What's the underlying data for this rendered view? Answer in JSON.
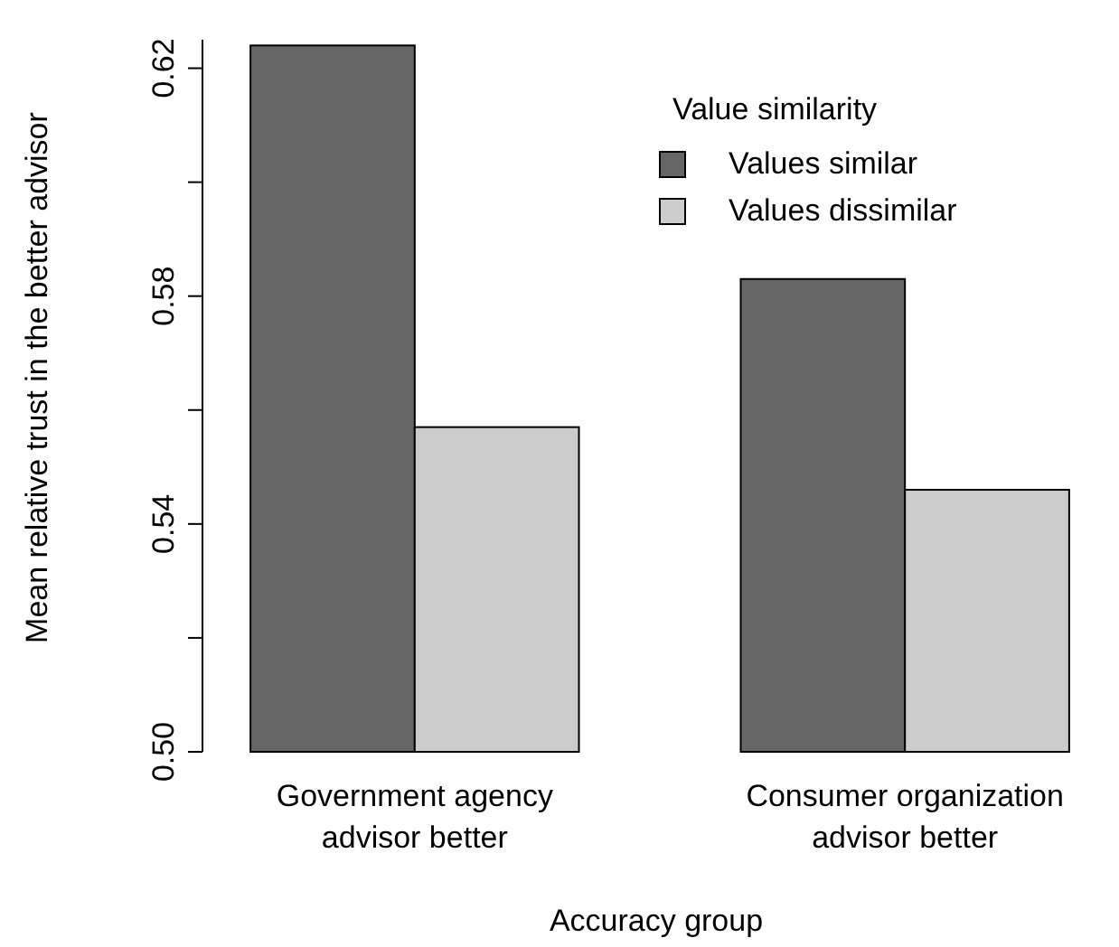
{
  "chart_data": {
    "type": "bar",
    "xlabel": "Accuracy group",
    "ylabel": "Mean relative trust in the better advisor",
    "legend_title": "Value similarity",
    "legend": "top right",
    "grid": false,
    "categories": [
      "Government agency\nadvisor better",
      "Consumer organization\nadvisor better"
    ],
    "series": [
      {
        "name": "Values similar",
        "color": "#666666",
        "values": [
          0.624,
          0.583
        ]
      },
      {
        "name": "Values dissimilar",
        "color": "#cccccc",
        "values": [
          0.557,
          0.546
        ]
      }
    ],
    "ylim": [
      0.5,
      0.625
    ],
    "yticks": [
      {
        "value": 0.5,
        "label": "0.50"
      },
      {
        "value": 0.52,
        "label": null
      },
      0.54,
      {
        "value": 0.56,
        "label": null
      },
      0.58,
      {
        "value": 0.6,
        "label": null
      },
      0.62
    ]
  }
}
